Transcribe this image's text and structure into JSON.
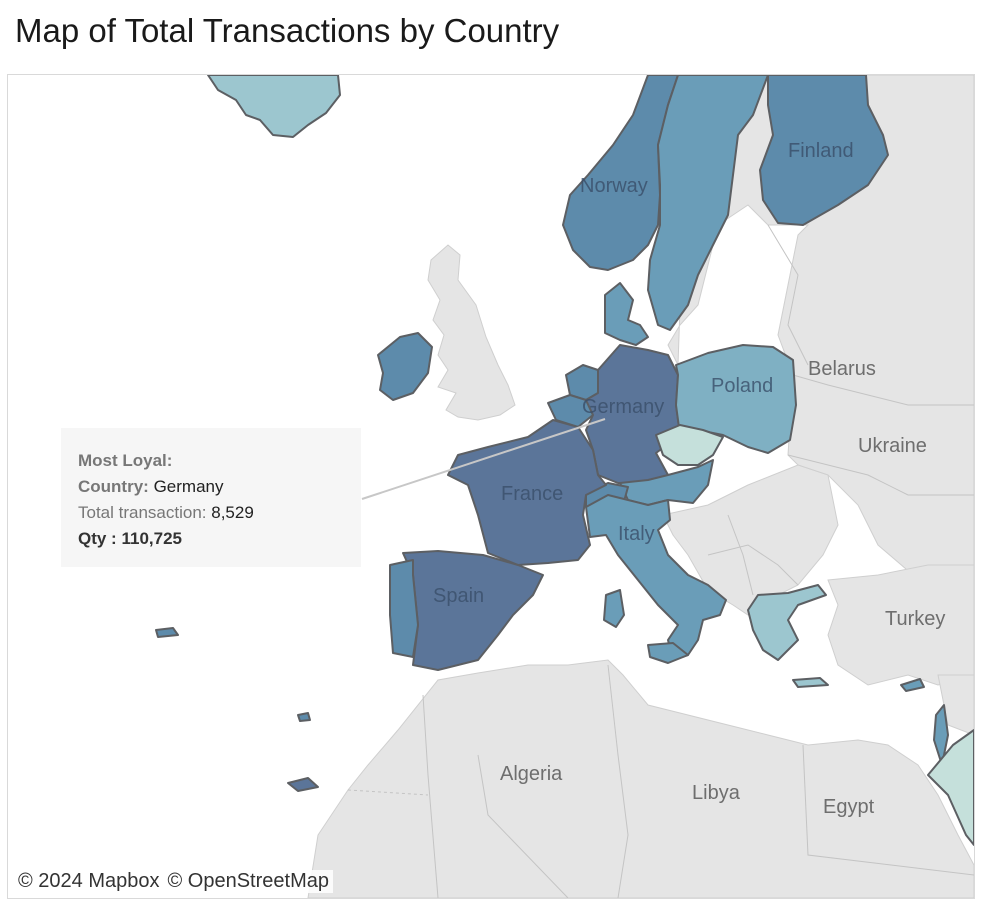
{
  "title": "Map of Total Transactions by Country",
  "colors": {
    "darkest": "#5b7599",
    "dark": "#5d8bab",
    "mid": "#6a9db8",
    "light": "#7fb0c3",
    "lighter": "#9cc6cf",
    "palest": "#c5e0db",
    "land": "#e5e5e5",
    "water": "#ffffff"
  },
  "map": {
    "country_labels": [
      "Finland",
      "Norway",
      "Poland",
      "Belarus",
      "Germany",
      "Ukraine",
      "France",
      "Italy",
      "Spain",
      "Turkey",
      "Algeria",
      "Libya",
      "Egypt"
    ],
    "highlighted_countries": [
      {
        "name": "Germany",
        "shade": "darkest"
      },
      {
        "name": "France",
        "shade": "darkest"
      },
      {
        "name": "Spain",
        "shade": "darkest"
      },
      {
        "name": "Norway",
        "shade": "dark"
      },
      {
        "name": "Finland",
        "shade": "dark"
      },
      {
        "name": "Ireland",
        "shade": "dark"
      },
      {
        "name": "Belgium",
        "shade": "dark"
      },
      {
        "name": "Netherlands",
        "shade": "dark"
      },
      {
        "name": "Portugal",
        "shade": "dark"
      },
      {
        "name": "Switzerland",
        "shade": "dark"
      },
      {
        "name": "Italy",
        "shade": "mid"
      },
      {
        "name": "Sweden",
        "shade": "mid"
      },
      {
        "name": "Austria",
        "shade": "mid"
      },
      {
        "name": "Denmark",
        "shade": "mid"
      },
      {
        "name": "Poland",
        "shade": "light"
      },
      {
        "name": "Iceland",
        "shade": "lighter"
      },
      {
        "name": "Greece",
        "shade": "lighter"
      },
      {
        "name": "Czech Republic",
        "shade": "palest"
      }
    ]
  },
  "tooltip": {
    "heading": "Most Loyal:",
    "country_label": "Country:",
    "country_value": "Germany",
    "transaction_label": "Total transaction:",
    "transaction_value": "8,529",
    "qty_label": "Qty :",
    "qty_value": "110,725"
  },
  "attribution": {
    "mapbox": "© 2024 Mapbox",
    "osm": "© OpenStreetMap"
  }
}
